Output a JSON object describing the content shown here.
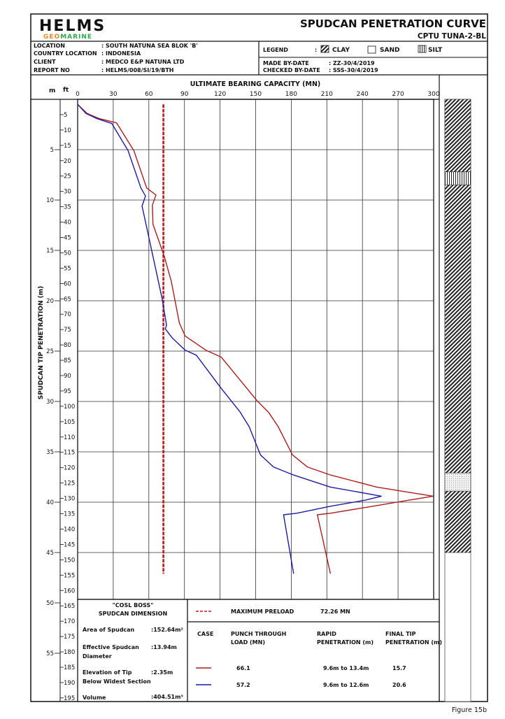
{
  "header": {
    "logo_top": "HELMS",
    "logo_bottom_1": "GEO",
    "logo_bottom_2": "MARINE",
    "title": "SPUDCAN PENETRATION CURVE",
    "subtitle": "CPTU TUNA-2-BL",
    "brand_green": "#2eaa4a",
    "brand_orange": "#e08a1e"
  },
  "info": {
    "rows": [
      {
        "label": "LOCATION",
        "value": ": SOUTH NATUNA SEA BLOK 'B'"
      },
      {
        "label": "COUNTRY LOCATION",
        "value": ": INDONESIA"
      },
      {
        "label": "CLIENT",
        "value": ": MEDCO E&P NATUNA LTD"
      },
      {
        "label": "REPORT NO",
        "value": ": HELMS/008/SI/19/BTH"
      }
    ],
    "legend_label": "LEGEND",
    "legend_colon": ":",
    "legend_items": [
      "CLAY",
      "SAND",
      "SILT"
    ],
    "made_by_label": "MADE BY-DATE",
    "made_by_value": ": ZZ-30/4/2019",
    "checked_by_label": "CHECKED BY-DATE",
    "checked_by_value": ": SSS-30/4/2019"
  },
  "chart_data": {
    "type": "line",
    "title": "ULTIMATE BEARING CAPACITY (MN)",
    "ylabel": "SPUDCAN TIP PENETRATION (m)",
    "y_unit_m": "m",
    "y_unit_ft": "ft",
    "xlim": [
      0,
      300
    ],
    "ylim_m": [
      0,
      59.5
    ],
    "y_inverted": true,
    "grid": true,
    "x_ticks": [
      0,
      30,
      60,
      90,
      120,
      150,
      180,
      210,
      240,
      270,
      300
    ],
    "m_ticks": [
      5,
      10,
      15,
      20,
      25,
      30,
      35,
      40,
      45,
      50,
      55
    ],
    "ft_ticks": [
      5,
      10,
      15,
      20,
      25,
      30,
      35,
      40,
      45,
      50,
      55,
      60,
      65,
      70,
      75,
      80,
      85,
      90,
      95,
      100,
      105,
      110,
      115,
      120,
      125,
      130,
      135,
      140,
      145,
      150,
      155,
      160,
      165,
      170,
      175,
      180,
      185,
      190,
      195
    ],
    "series": [
      {
        "color": "#b01c1c",
        "points": [
          [
            0.5,
            0
          ],
          [
            1.4,
            8
          ],
          [
            1.9,
            18
          ],
          [
            2.34,
            32.8
          ],
          [
            5.1,
            47.4
          ],
          [
            8.8,
            58.2
          ],
          [
            9.5,
            66
          ],
          [
            10.5,
            63
          ],
          [
            12.4,
            63.5
          ],
          [
            15.6,
            73
          ],
          [
            18.1,
            79
          ],
          [
            22.2,
            85.7
          ],
          [
            23.5,
            90.6
          ],
          [
            24.9,
            108
          ],
          [
            25.6,
            121
          ],
          [
            29.9,
            151
          ],
          [
            31.1,
            161
          ],
          [
            32.5,
            169
          ],
          [
            35.3,
            181
          ],
          [
            36.5,
            193.5
          ],
          [
            37.3,
            213
          ],
          [
            38.5,
            252
          ],
          [
            39.4,
            299.5
          ],
          [
            39.9,
            274
          ],
          [
            40.3,
            254
          ],
          [
            41.1,
            213
          ],
          [
            41.25,
            202
          ],
          [
            47.1,
            213
          ]
        ]
      },
      {
        "color": "#1c1ca8",
        "points": [
          [
            0.5,
            0
          ],
          [
            1.4,
            7
          ],
          [
            1.9,
            16
          ],
          [
            2.4,
            28.8
          ],
          [
            5.1,
            42.5
          ],
          [
            8.8,
            53.3
          ],
          [
            9.6,
            57.2
          ],
          [
            10.6,
            54.3
          ],
          [
            19.7,
            71
          ],
          [
            22.4,
            74.9
          ],
          [
            22.8,
            73.9
          ],
          [
            23.7,
            79.8
          ],
          [
            24.9,
            90.6
          ],
          [
            25.4,
            100
          ],
          [
            28.7,
            121
          ],
          [
            31,
            136.6
          ],
          [
            32.5,
            144.5
          ],
          [
            35.3,
            154
          ],
          [
            36.5,
            165
          ],
          [
            37.3,
            181.8
          ],
          [
            38.5,
            213
          ],
          [
            39.4,
            256
          ],
          [
            39.8,
            242.5
          ],
          [
            40.4,
            213
          ],
          [
            41.1,
            184.7
          ],
          [
            41.25,
            173.5
          ],
          [
            47.1,
            182
          ]
        ]
      }
    ],
    "preload": {
      "value": 72.26,
      "depth_range_m": [
        0.5,
        47.1
      ],
      "color": "#c01818"
    },
    "soil_column": [
      {
        "type": "clay",
        "from_m": 0,
        "to_m": 7.2
      },
      {
        "type": "silt",
        "from_m": 7.2,
        "to_m": 8.5
      },
      {
        "type": "clay",
        "from_m": 8.5,
        "to_m": 37.1
      },
      {
        "type": "sand",
        "from_m": 37.1,
        "to_m": 38.9
      },
      {
        "type": "clay",
        "from_m": 38.9,
        "to_m": 45
      }
    ]
  },
  "dimension": {
    "rig": "\"COSL BOSS\"",
    "heading": "SPUDCAN DIMENSION",
    "rows": [
      {
        "label": "Area of Spudcan",
        "label2": "",
        "value": ":152.64m²"
      },
      {
        "label": "Effective Spudcan",
        "label2": "Diameter",
        "value": ":13.94m"
      },
      {
        "label": "Elevation of Tip",
        "label2": "Below Widest Section",
        "value": ":2.35m"
      },
      {
        "label": "Volume",
        "label2": "",
        "value": ":404.51m³"
      }
    ]
  },
  "summary": {
    "preload_label": "MAXIMUM PRELOAD",
    "preload_value": "72.26 MN",
    "headers": [
      "CASE",
      "PUNCH THROUGH",
      "LOAD (MN)",
      "RAPID",
      "PENETRATION (m)",
      "FINAL TIP",
      "PENETRATION (m)"
    ],
    "cases": [
      {
        "color": "#b01c1c",
        "punch": "66.1",
        "rapid": "9.6m to 13.4m",
        "final": "15.7"
      },
      {
        "color": "#1c1ca8",
        "punch": "57.2",
        "rapid": "9.6m to 12.6m",
        "final": "20.6"
      }
    ]
  },
  "footer": {
    "figure": "Figure 15b"
  }
}
